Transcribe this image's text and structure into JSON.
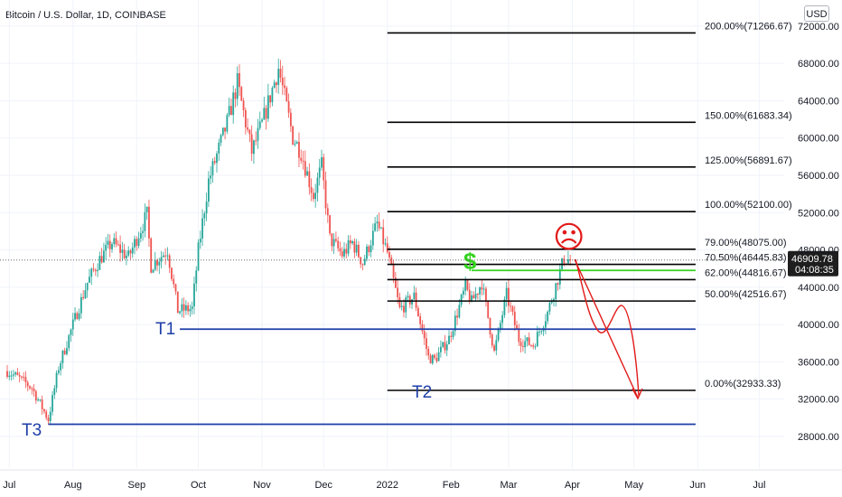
{
  "title": "Bitcoin / U.S. Dollar, 1D, COINBASE",
  "currency_button": "USD",
  "price_tag": {
    "price": "46909.78",
    "countdown": "04:08:35",
    "color": "#1e1e1e"
  },
  "colors": {
    "up": "#26a69a",
    "down": "#ef5350",
    "fib": "#000000",
    "support": "#1e3ea8",
    "green_line": "#34d21e",
    "red": "#e21a1a",
    "dollar": "#34d21e"
  },
  "annotations": {
    "t1": "T1",
    "t2": "T2",
    "t3": "T3",
    "dollar": "$",
    "sad_face": "☹"
  },
  "chart_data": {
    "type": "candlestick",
    "title": "Bitcoin / U.S. Dollar, 1D, COINBASE",
    "y_ticks": [
      "72000.00",
      "68000.00",
      "64000.00",
      "60000.00",
      "56000.00",
      "52000.00",
      "48000.00",
      "44000.00",
      "40000.00",
      "36000.00",
      "32000.00",
      "28000.00"
    ],
    "y_tick_values": [
      72000,
      68000,
      64000,
      60000,
      56000,
      52000,
      48000,
      44000,
      40000,
      36000,
      32000,
      28000
    ],
    "x_ticks": [
      "Jul",
      "Aug",
      "Sep",
      "Oct",
      "Nov",
      "Dec",
      "2022",
      "Feb",
      "Mar",
      "Apr",
      "May",
      "Jun",
      "Jul"
    ],
    "x_tick_dates": [
      "2021-07-01",
      "2021-08-01",
      "2021-09-01",
      "2021-10-01",
      "2021-11-01",
      "2021-12-01",
      "2022-01-01",
      "2022-02-01",
      "2022-03-01",
      "2022-04-01",
      "2022-05-01",
      "2022-06-01",
      "2022-07-01"
    ],
    "ylim": [
      24600,
      74800
    ],
    "xlim": [
      "2021-06-30",
      "2022-07-14"
    ],
    "last_price": 46909.78,
    "price_path": [
      [
        "2021-06-30",
        35000
      ],
      [
        "2021-07-06",
        34200
      ],
      [
        "2021-07-12",
        33200
      ],
      [
        "2021-07-20",
        29800
      ],
      [
        "2021-07-25",
        35400
      ],
      [
        "2021-08-01",
        40000
      ],
      [
        "2021-08-08",
        44500
      ],
      [
        "2021-08-14",
        47000
      ],
      [
        "2021-08-20",
        48800
      ],
      [
        "2021-08-28",
        47200
      ],
      [
        "2021-09-06",
        51800
      ],
      [
        "2021-09-08",
        46300
      ],
      [
        "2021-09-16",
        48000
      ],
      [
        "2021-09-21",
        41500
      ],
      [
        "2021-09-28",
        41700
      ],
      [
        "2021-10-01",
        48000
      ],
      [
        "2021-10-06",
        55400
      ],
      [
        "2021-10-15",
        61600
      ],
      [
        "2021-10-20",
        65900
      ],
      [
        "2021-10-27",
        58500
      ],
      [
        "2021-11-01",
        61500
      ],
      [
        "2021-11-09",
        67500
      ],
      [
        "2021-11-16",
        60100
      ],
      [
        "2021-11-20",
        58500
      ],
      [
        "2021-11-26",
        53800
      ],
      [
        "2021-11-30",
        57000
      ],
      [
        "2021-12-04",
        49200
      ],
      [
        "2021-12-10",
        47500
      ],
      [
        "2021-12-15",
        48800
      ],
      [
        "2021-12-20",
        46600
      ],
      [
        "2021-12-27",
        50800
      ],
      [
        "2022-01-01",
        47700
      ],
      [
        "2022-01-07",
        41600
      ],
      [
        "2022-01-14",
        43000
      ],
      [
        "2022-01-21",
        36500
      ],
      [
        "2022-01-24",
        36200
      ],
      [
        "2022-01-31",
        38500
      ],
      [
        "2022-02-08",
        44000
      ],
      [
        "2022-02-11",
        42400
      ],
      [
        "2022-02-16",
        44500
      ],
      [
        "2022-02-22",
        37000
      ],
      [
        "2022-02-28",
        43200
      ],
      [
        "2022-03-06",
        38400
      ],
      [
        "2022-03-13",
        37800
      ],
      [
        "2022-03-20",
        41300
      ],
      [
        "2022-03-28",
        47100
      ],
      [
        "2022-03-31",
        46909.78
      ]
    ],
    "fib_levels": [
      {
        "label": "200.00%(71266.67)",
        "value": 71266.67
      },
      {
        "label": "150.00%(61683.34)",
        "value": 61683.34
      },
      {
        "label": "125.00%(56891.67)",
        "value": 56891.67
      },
      {
        "label": "100.00%(52100.00)",
        "value": 52100.0
      },
      {
        "label": "79.00%(48075.00)",
        "value": 48075.0
      },
      {
        "label": "70.50%(46445.83)",
        "value": 46445.83
      },
      {
        "label": "62.00%(44816.67)",
        "value": 44816.67
      },
      {
        "label": "50.00%(42516.67)",
        "value": 42516.67
      },
      {
        "label": "0.00%(32933.33)",
        "value": 32933.33
      }
    ],
    "fib_range": [
      "2022-01-01",
      "2022-05-31"
    ],
    "support_lines": [
      {
        "label": "T1",
        "value": 39500,
        "from": "2021-09-22",
        "to": "2022-05-31"
      },
      {
        "label": "T2",
        "value": 32933.33,
        "from": "2022-01-24",
        "to": "2022-05-31"
      },
      {
        "label": "T3",
        "value": 29300,
        "from": "2021-07-20",
        "to": "2022-05-31"
      }
    ],
    "green_line": {
      "value": 45800,
      "from": "2022-02-11",
      "to": "2022-05-31"
    }
  }
}
